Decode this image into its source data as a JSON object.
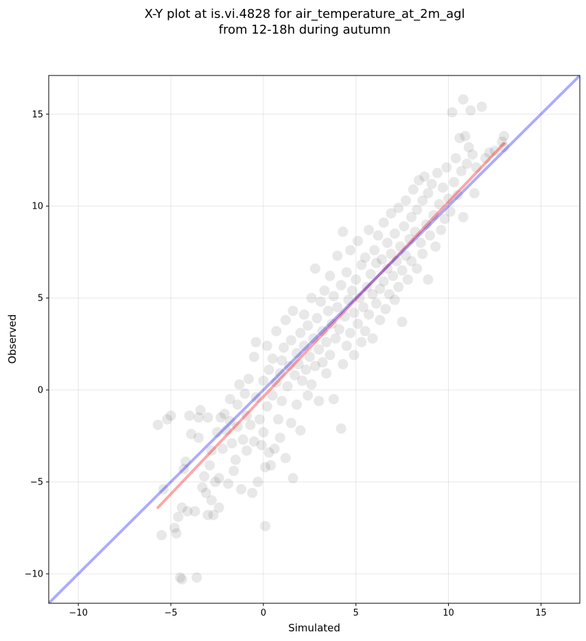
{
  "chart_data": {
    "type": "scatter",
    "title": "X-Y plot at is.vi.4828 for air_temperature_at_2m_agl",
    "subtitle": "from 12-18h during autumn",
    "xlabel": "Simulated",
    "ylabel": "Observed",
    "xlim": [
      -11.6,
      17.1
    ],
    "ylim": [
      -11.6,
      17.1
    ],
    "xticks": [
      -10,
      -5,
      0,
      5,
      10,
      15
    ],
    "yticks": [
      -10,
      -5,
      0,
      5,
      10,
      15
    ],
    "xtick_labels": [
      "−10",
      "−5",
      "0",
      "5",
      "10",
      "15"
    ],
    "ytick_labels": [
      "−10",
      "−5",
      "0",
      "5",
      "10",
      "15"
    ],
    "grid": true,
    "lines": [
      {
        "color": "#ff0000",
        "points": [
          [
            -5.7,
            -6.4
          ],
          [
            13.0,
            13.4
          ]
        ]
      },
      {
        "color": "#0000ff",
        "points": [
          [
            -11.6,
            -11.6
          ],
          [
            17.1,
            17.1
          ]
        ]
      }
    ],
    "point_color": "#000000",
    "points": [
      [
        -5.7,
        -1.9
      ],
      [
        -5.5,
        -7.9
      ],
      [
        -5.4,
        -5.4
      ],
      [
        -5.2,
        -1.6
      ],
      [
        -5.0,
        -1.4
      ],
      [
        -4.8,
        -7.5
      ],
      [
        -4.7,
        -7.8
      ],
      [
        -4.6,
        -6.9
      ],
      [
        -4.5,
        -10.2
      ],
      [
        -4.4,
        -10.3
      ],
      [
        -4.4,
        -6.4
      ],
      [
        -4.3,
        -4.3
      ],
      [
        -4.2,
        -3.9
      ],
      [
        -4.1,
        -6.6
      ],
      [
        -4.0,
        -1.4
      ],
      [
        -3.9,
        -2.4
      ],
      [
        -3.7,
        -6.6
      ],
      [
        -3.6,
        -10.2
      ],
      [
        -3.5,
        -1.5
      ],
      [
        -3.5,
        -2.6
      ],
      [
        -3.4,
        -1.1
      ],
      [
        -3.3,
        -5.3
      ],
      [
        -3.2,
        -4.7
      ],
      [
        -3.1,
        -5.6
      ],
      [
        -3.0,
        -1.5
      ],
      [
        -3.0,
        -6.8
      ],
      [
        -2.9,
        -4.1
      ],
      [
        -2.8,
        -3.3
      ],
      [
        -2.8,
        -6.0
      ],
      [
        -2.7,
        -6.8
      ],
      [
        -2.6,
        -5.0
      ],
      [
        -2.5,
        -2.3
      ],
      [
        -2.4,
        -6.4
      ],
      [
        -2.4,
        -4.8
      ],
      [
        -2.3,
        -1.5
      ],
      [
        -2.2,
        -3.2
      ],
      [
        -2.1,
        -1.3
      ],
      [
        -2.0,
        -2.2
      ],
      [
        -1.9,
        -5.1
      ],
      [
        -1.8,
        -1.7
      ],
      [
        -1.8,
        -0.5
      ],
      [
        -1.7,
        -2.9
      ],
      [
        -1.6,
        -4.4
      ],
      [
        -1.5,
        -3.8
      ],
      [
        -1.4,
        -0.8
      ],
      [
        -1.4,
        -2.0
      ],
      [
        -1.3,
        0.3
      ],
      [
        -1.2,
        -5.4
      ],
      [
        -1.1,
        -2.7
      ],
      [
        -1.0,
        -0.2
      ],
      [
        -0.9,
        -3.3
      ],
      [
        -0.9,
        -1.4
      ],
      [
        -0.8,
        0.6
      ],
      [
        -0.7,
        -1.9
      ],
      [
        -0.6,
        -5.6
      ],
      [
        -0.5,
        -2.8
      ],
      [
        -0.5,
        1.8
      ],
      [
        -0.4,
        -0.4
      ],
      [
        -0.4,
        2.6
      ],
      [
        -0.3,
        -5.0
      ],
      [
        -0.2,
        -1.6
      ],
      [
        -0.1,
        -3.0
      ],
      [
        0.0,
        -2.3
      ],
      [
        0.0,
        0.5
      ],
      [
        0.1,
        -7.4
      ],
      [
        0.1,
        -4.2
      ],
      [
        0.2,
        -0.9
      ],
      [
        0.2,
        2.4
      ],
      [
        0.3,
        -3.4
      ],
      [
        0.3,
        1.1
      ],
      [
        0.4,
        -4.1
      ],
      [
        0.5,
        -0.3
      ],
      [
        0.5,
        1.7
      ],
      [
        0.6,
        -3.2
      ],
      [
        0.7,
        0.4
      ],
      [
        0.7,
        3.2
      ],
      [
        0.8,
        -1.6
      ],
      [
        0.9,
        0.9
      ],
      [
        0.9,
        -2.6
      ],
      [
        1.0,
        1.6
      ],
      [
        1.0,
        -0.6
      ],
      [
        1.1,
        2.3
      ],
      [
        1.2,
        -3.7
      ],
      [
        1.2,
        3.8
      ],
      [
        1.3,
        0.2
      ],
      [
        1.4,
        1.3
      ],
      [
        1.5,
        -1.8
      ],
      [
        1.5,
        2.7
      ],
      [
        1.6,
        -4.8
      ],
      [
        1.6,
        4.3
      ],
      [
        1.7,
        0.8
      ],
      [
        1.8,
        2.0
      ],
      [
        1.8,
        -0.8
      ],
      [
        1.9,
        1.4
      ],
      [
        2.0,
        3.1
      ],
      [
        2.0,
        -2.2
      ],
      [
        2.1,
        0.5
      ],
      [
        2.2,
        2.4
      ],
      [
        2.2,
        4.1
      ],
      [
        2.3,
        1.1
      ],
      [
        2.4,
        -0.3
      ],
      [
        2.4,
        3.5
      ],
      [
        2.5,
        1.8
      ],
      [
        2.6,
        5.0
      ],
      [
        2.6,
        0.3
      ],
      [
        2.7,
        2.8
      ],
      [
        2.8,
        1.3
      ],
      [
        2.8,
        6.6
      ],
      [
        2.9,
        3.9
      ],
      [
        3.0,
        2.2
      ],
      [
        3.0,
        -0.6
      ],
      [
        3.1,
        4.8
      ],
      [
        3.2,
        1.5
      ],
      [
        3.2,
        3.2
      ],
      [
        3.3,
        5.4
      ],
      [
        3.4,
        2.6
      ],
      [
        3.4,
        0.9
      ],
      [
        3.5,
        4.3
      ],
      [
        3.6,
        6.2
      ],
      [
        3.6,
        1.9
      ],
      [
        3.7,
        3.6
      ],
      [
        3.8,
        5.1
      ],
      [
        3.8,
        -0.5
      ],
      [
        3.9,
        2.8
      ],
      [
        4.0,
        4.5
      ],
      [
        4.0,
        7.3
      ],
      [
        4.1,
        3.3
      ],
      [
        4.2,
        -2.1
      ],
      [
        4.2,
        5.7
      ],
      [
        4.3,
        1.4
      ],
      [
        4.3,
        8.6
      ],
      [
        4.4,
        4.0
      ],
      [
        4.5,
        2.4
      ],
      [
        4.5,
        6.4
      ],
      [
        4.6,
        4.9
      ],
      [
        4.7,
        3.1
      ],
      [
        4.7,
        7.6
      ],
      [
        4.8,
        5.4
      ],
      [
        4.9,
        1.9
      ],
      [
        4.9,
        4.2
      ],
      [
        5.0,
        6.0
      ],
      [
        5.1,
        3.6
      ],
      [
        5.1,
        8.1
      ],
      [
        5.2,
        5.0
      ],
      [
        5.3,
        2.6
      ],
      [
        5.3,
        6.8
      ],
      [
        5.4,
        4.5
      ],
      [
        5.5,
        7.2
      ],
      [
        5.5,
        3.2
      ],
      [
        5.6,
        5.6
      ],
      [
        5.7,
        8.7
      ],
      [
        5.7,
        4.1
      ],
      [
        5.8,
        6.3
      ],
      [
        5.9,
        2.8
      ],
      [
        5.9,
        5.2
      ],
      [
        6.0,
        7.6
      ],
      [
        6.1,
        4.7
      ],
      [
        6.1,
        6.9
      ],
      [
        6.2,
        8.4
      ],
      [
        6.3,
        5.5
      ],
      [
        6.3,
        3.8
      ],
      [
        6.4,
        7.1
      ],
      [
        6.5,
        5.9
      ],
      [
        6.5,
        9.1
      ],
      [
        6.6,
        4.4
      ],
      [
        6.7,
        6.6
      ],
      [
        6.7,
        8.0
      ],
      [
        6.8,
        5.2
      ],
      [
        6.9,
        7.4
      ],
      [
        6.9,
        9.6
      ],
      [
        7.0,
        6.2
      ],
      [
        7.1,
        4.9
      ],
      [
        7.1,
        8.5
      ],
      [
        7.2,
        7.0
      ],
      [
        7.3,
        5.6
      ],
      [
        7.3,
        9.9
      ],
      [
        7.4,
        7.8
      ],
      [
        7.5,
        6.5
      ],
      [
        7.5,
        3.7
      ],
      [
        7.6,
        8.9
      ],
      [
        7.7,
        7.3
      ],
      [
        7.7,
        10.3
      ],
      [
        7.8,
        6.0
      ],
      [
        7.9,
        8.2
      ],
      [
        8.0,
        9.4
      ],
      [
        8.0,
        7.0
      ],
      [
        8.1,
        10.9
      ],
      [
        8.2,
        8.6
      ],
      [
        8.3,
        6.6
      ],
      [
        8.3,
        9.8
      ],
      [
        8.4,
        11.4
      ],
      [
        8.5,
        8.0
      ],
      [
        8.6,
        10.3
      ],
      [
        8.6,
        7.4
      ],
      [
        8.7,
        11.6
      ],
      [
        8.8,
        9.0
      ],
      [
        8.9,
        6.0
      ],
      [
        8.9,
        10.7
      ],
      [
        9.0,
        8.4
      ],
      [
        9.1,
        11.2
      ],
      [
        9.2,
        9.5
      ],
      [
        9.3,
        7.8
      ],
      [
        9.4,
        11.8
      ],
      [
        9.5,
        10.1
      ],
      [
        9.6,
        8.7
      ],
      [
        9.7,
        11.0
      ],
      [
        9.8,
        9.3
      ],
      [
        9.9,
        12.1
      ],
      [
        10.0,
        10.4
      ],
      [
        10.1,
        9.7
      ],
      [
        10.2,
        15.1
      ],
      [
        10.3,
        11.3
      ],
      [
        10.4,
        12.6
      ],
      [
        10.5,
        10.6
      ],
      [
        10.6,
        13.7
      ],
      [
        10.7,
        11.9
      ],
      [
        10.8,
        15.8
      ],
      [
        10.8,
        9.4
      ],
      [
        10.9,
        13.8
      ],
      [
        11.0,
        12.3
      ],
      [
        11.1,
        13.2
      ],
      [
        11.2,
        15.2
      ],
      [
        11.3,
        12.8
      ],
      [
        11.4,
        10.7
      ],
      [
        11.5,
        12.1
      ],
      [
        11.8,
        15.4
      ],
      [
        12.0,
        12.6
      ],
      [
        12.5,
        13.0
      ],
      [
        13.0,
        13.8
      ],
      [
        12.9,
        13.5
      ],
      [
        13.0,
        13.2
      ],
      [
        12.2,
        12.9
      ]
    ]
  }
}
